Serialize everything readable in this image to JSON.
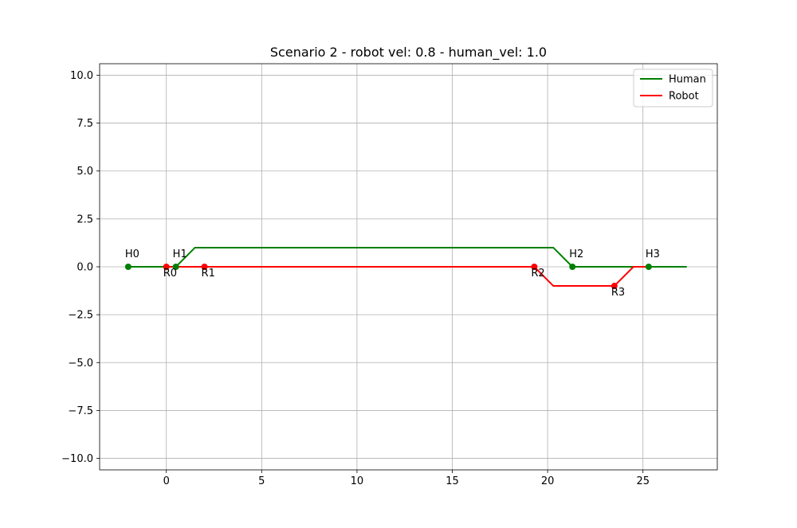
{
  "chart_data": {
    "type": "line",
    "title": "Scenario 2 - robot vel: 0.8 - human_vel: 1.0",
    "xlabel": "",
    "ylabel": "",
    "xlim": [
      -3.5,
      28.9
    ],
    "ylim": [
      -10.6,
      10.6
    ],
    "xticks": [
      0,
      5,
      10,
      15,
      20,
      25
    ],
    "yticks": [
      10.0,
      7.5,
      5.0,
      2.5,
      0.0,
      -2.5,
      -5.0,
      -7.5,
      -10.0
    ],
    "xtick_labels": [
      "0",
      "5",
      "10",
      "15",
      "20",
      "25"
    ],
    "ytick_labels": [
      "10.0",
      "7.5",
      "5.0",
      "2.5",
      "0.0",
      "−2.5",
      "−5.0",
      "−7.5",
      "−10.0"
    ],
    "grid": true,
    "legend_position": "top-right",
    "series": [
      {
        "name": "Human",
        "color": "#008000",
        "x": [
          -2.0,
          0.5,
          1.5,
          20.3,
          21.3,
          27.3
        ],
        "y": [
          0,
          0,
          1,
          1,
          0,
          0
        ],
        "waypoints": [
          {
            "label": "H0",
            "x": -2.0,
            "y": 0
          },
          {
            "label": "H1",
            "x": 0.5,
            "y": 0
          },
          {
            "label": "H2",
            "x": 21.3,
            "y": 0
          },
          {
            "label": "H3",
            "x": 25.3,
            "y": 0
          }
        ]
      },
      {
        "name": "Robot",
        "color": "#ff0000",
        "x": [
          0,
          2.0,
          19.3,
          20.3,
          23.5,
          24.5,
          25.3
        ],
        "y": [
          0,
          0,
          0,
          -1,
          -1,
          0,
          0
        ],
        "waypoints": [
          {
            "label": "R0",
            "x": 0,
            "y": 0
          },
          {
            "label": "R1",
            "x": 2.0,
            "y": 0
          },
          {
            "label": "R2",
            "x": 19.3,
            "y": 0
          },
          {
            "label": "R3",
            "x": 23.5,
            "y": -1
          }
        ]
      }
    ]
  }
}
